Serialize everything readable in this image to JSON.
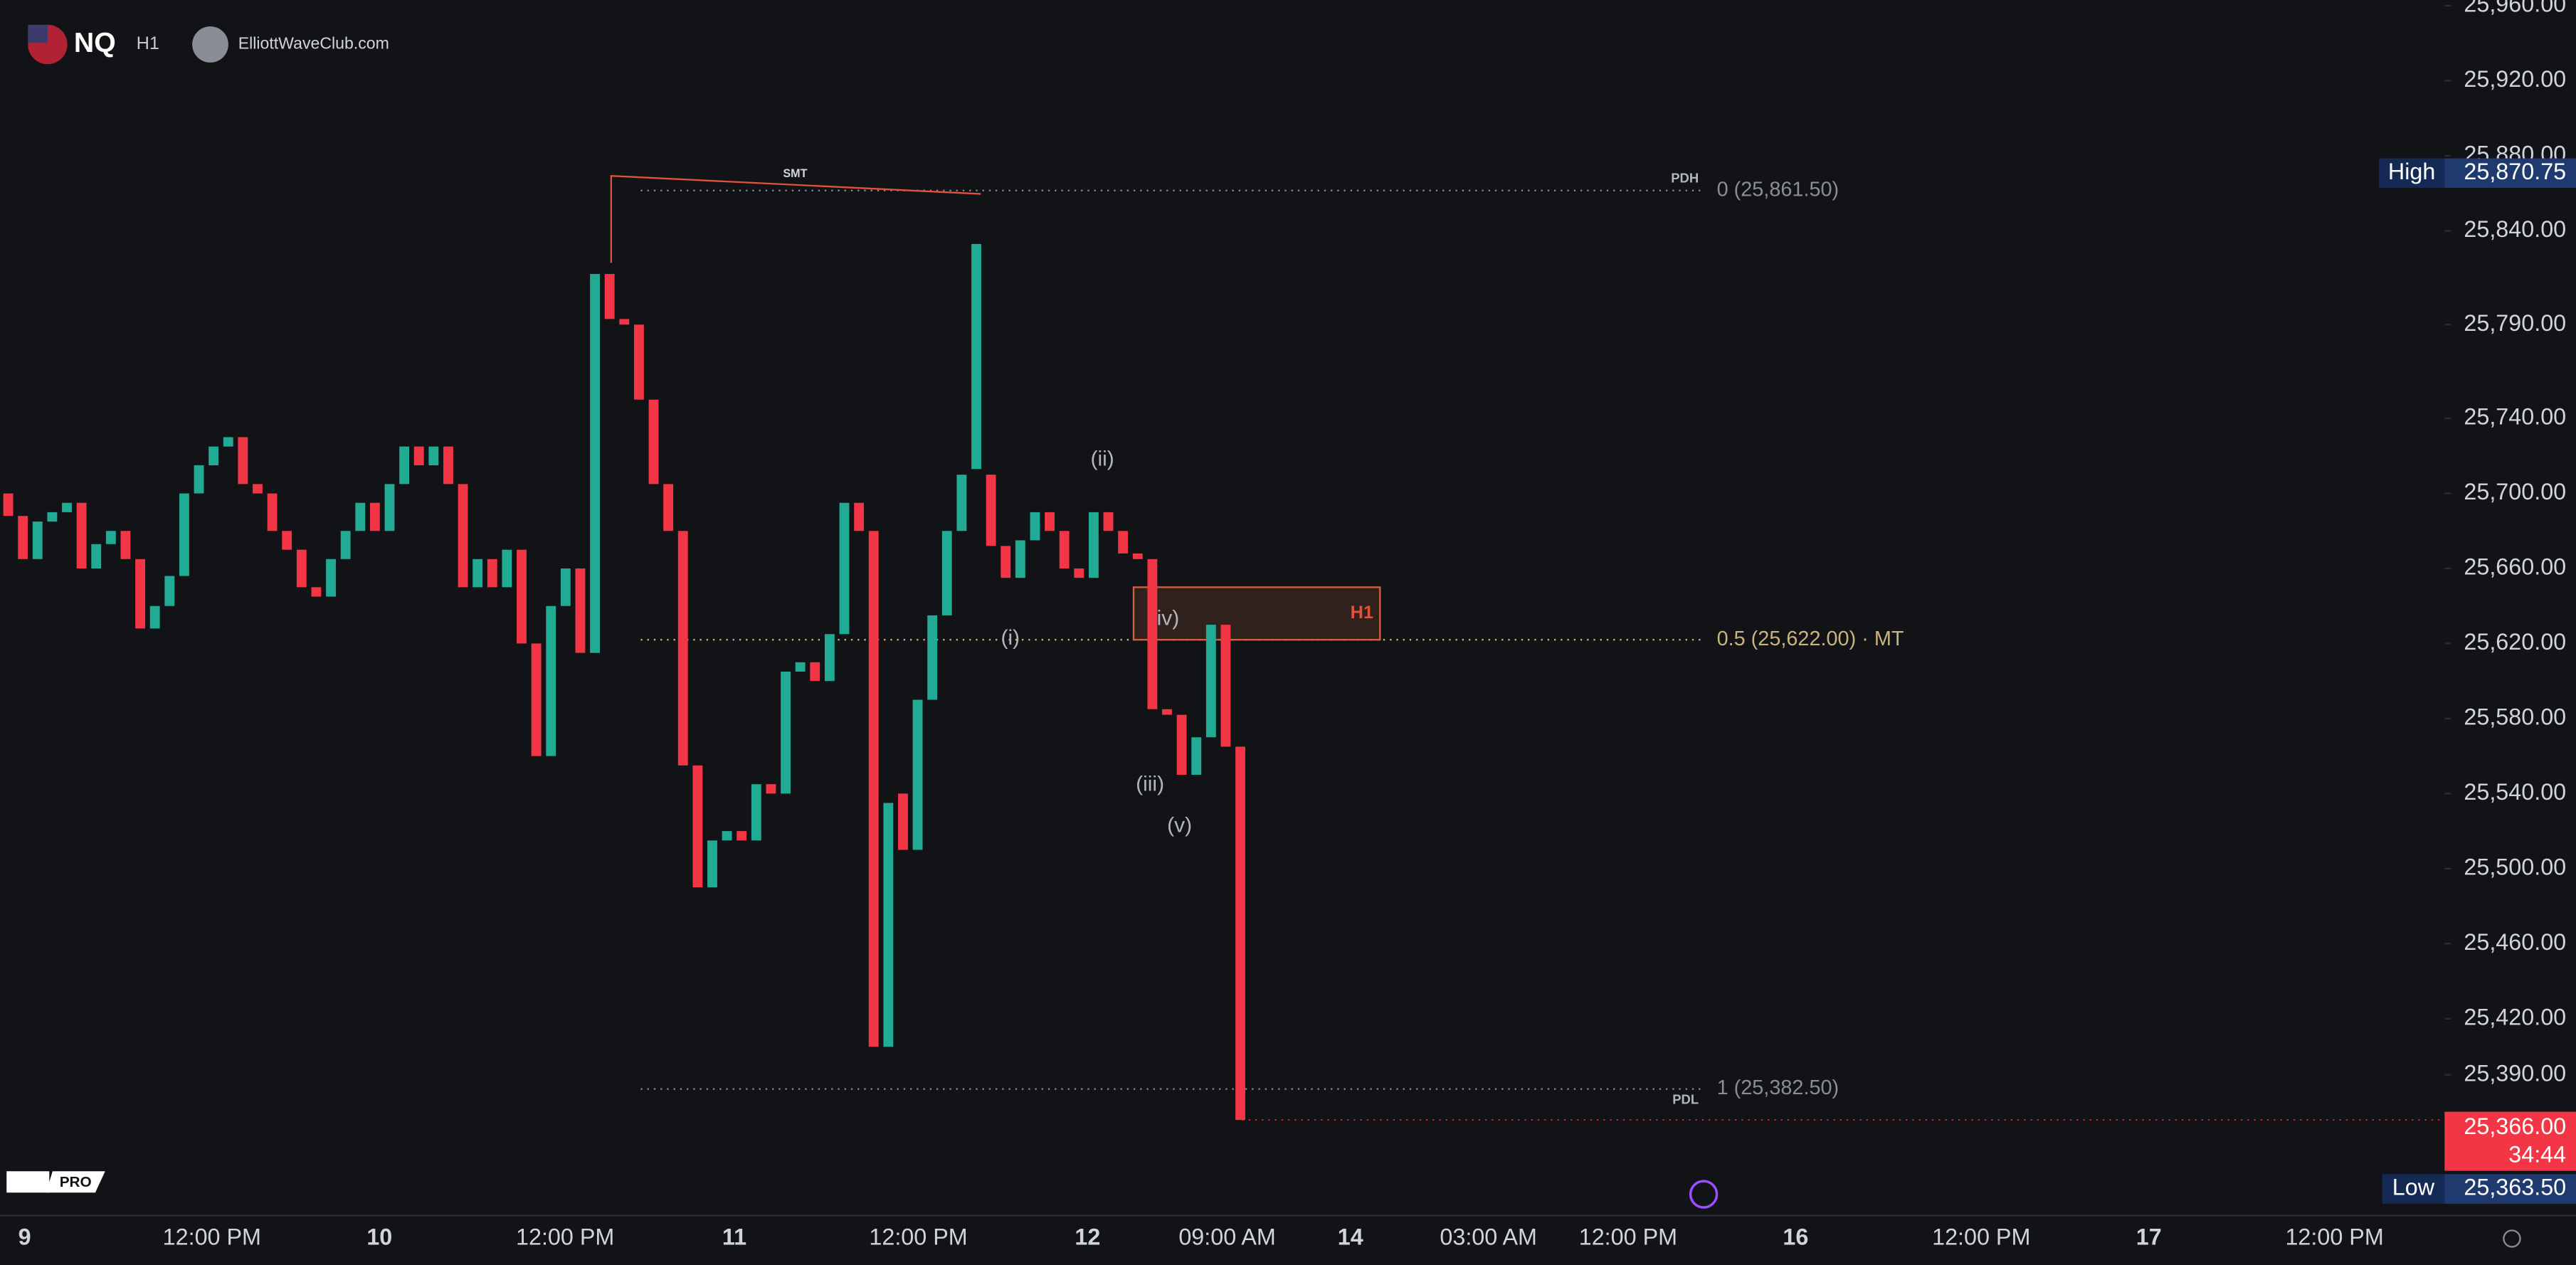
{
  "header": {
    "symbol": "NQ",
    "interval": "H1",
    "source": "ElliottWaveClub.com",
    "badge": "PRO"
  },
  "chart_data": {
    "type": "candlestick",
    "open": [
      25700,
      25688,
      25665,
      25685,
      25690,
      25695,
      25660,
      25673,
      25680,
      25665,
      25628,
      25640,
      25656,
      25700,
      25715,
      25725,
      25730,
      25705,
      25700,
      25680,
      25670,
      25650,
      25645,
      25665,
      25680,
      25695,
      25680,
      25705,
      25725,
      25715,
      25725,
      25705,
      25650,
      25665,
      25650,
      25670,
      25620,
      25560,
      25640,
      25660,
      25615,
      25817,
      25793,
      25790,
      25750,
      25705,
      25680,
      25555,
      25490,
      25515,
      25520,
      25515,
      25545,
      25540,
      25605,
      25610,
      25600,
      25625,
      25695,
      25680,
      25405,
      25540,
      25510,
      25590,
      25635,
      25680,
      25713,
      25710,
      25672,
      25655,
      25675,
      25690,
      25680,
      25660,
      25655,
      25690,
      25680,
      25668,
      25665,
      25585,
      25582,
      25550,
      25570,
      25630,
      25565
    ],
    "high": {
      "name": "High",
      "value": 25870.75,
      "value_label": "25,870.75"
    },
    "low": {
      "name": "Low",
      "value": 25363.5,
      "value_label": "25,363.50"
    },
    "close": [
      25688,
      25665,
      25685,
      25690,
      25695,
      25660,
      25673,
      25680,
      25665,
      25628,
      25640,
      25656,
      25700,
      25715,
      25725,
      25730,
      25705,
      25700,
      25680,
      25670,
      25650,
      25645,
      25665,
      25680,
      25695,
      25680,
      25705,
      25725,
      25715,
      25725,
      25705,
      25650,
      25665,
      25650,
      25670,
      25620,
      25560,
      25640,
      25660,
      25615,
      25817,
      25793,
      25790,
      25750,
      25705,
      25680,
      25555,
      25490,
      25515,
      25520,
      25515,
      25545,
      25540,
      25605,
      25610,
      25600,
      25625,
      25695,
      25680,
      25405,
      25535,
      25510,
      25590,
      25635,
      25680,
      25710,
      25833,
      25672,
      25655,
      25675,
      25690,
      25680,
      25660,
      25655,
      25690,
      25680,
      25668,
      25665,
      25585,
      25582,
      25550,
      25570,
      25630,
      25565,
      25366
    ],
    "up_color": "#22ab94",
    "down_color": "#f23645",
    "ylim": [
      25315,
      25963
    ],
    "yticks": [
      {
        "value": 25960,
        "label": "25,960.00"
      },
      {
        "value": 25920,
        "label": "25,920.00"
      },
      {
        "value": 25880,
        "label": "25,880.00"
      },
      {
        "value": 25840,
        "label": "25,840.00"
      },
      {
        "value": 25790,
        "label": "25,790.00"
      },
      {
        "value": 25740,
        "label": "25,740.00"
      },
      {
        "value": 25700,
        "label": "25,700.00"
      },
      {
        "value": 25660,
        "label": "25,660.00"
      },
      {
        "value": 25620,
        "label": "25,620.00"
      },
      {
        "value": 25580,
        "label": "25,580.00"
      },
      {
        "value": 25540,
        "label": "25,540.00"
      },
      {
        "value": 25500,
        "label": "25,500.00"
      },
      {
        "value": 25460,
        "label": "25,460.00"
      },
      {
        "value": 25420,
        "label": "25,420.00"
      },
      {
        "value": 25390,
        "label": "25,390.00"
      }
    ],
    "x_labels": [
      "9",
      "12:00 PM",
      "10",
      "12:00 PM",
      "11",
      "12:00 PM",
      "12",
      "09:00 AM",
      "14",
      "03:00 AM",
      "12:00 PM",
      "16",
      "12:00 PM",
      "17",
      "12:00 PM"
    ],
    "levels": [
      {
        "value": 25861.5,
        "label": "0 (25,861.50)",
        "tag": "PDH",
        "color": "#8a8d96"
      },
      {
        "value": 25622,
        "label": "0.5 (25,622.00) · MT",
        "color": "#c9b37e"
      },
      {
        "value": 25382.5,
        "label": "1 (25,382.50)",
        "tag": "PDL",
        "color": "#8a8d96"
      }
    ],
    "zone": {
      "top": 25650,
      "bottom": 25622,
      "label": "H1"
    },
    "smt": "SMT",
    "waves": [
      "(i)",
      "(ii)",
      "(iii)",
      "iv)",
      "(v)"
    ],
    "last": {
      "value": 25366,
      "value_label": "25,366.00",
      "timer": "34:44"
    }
  }
}
